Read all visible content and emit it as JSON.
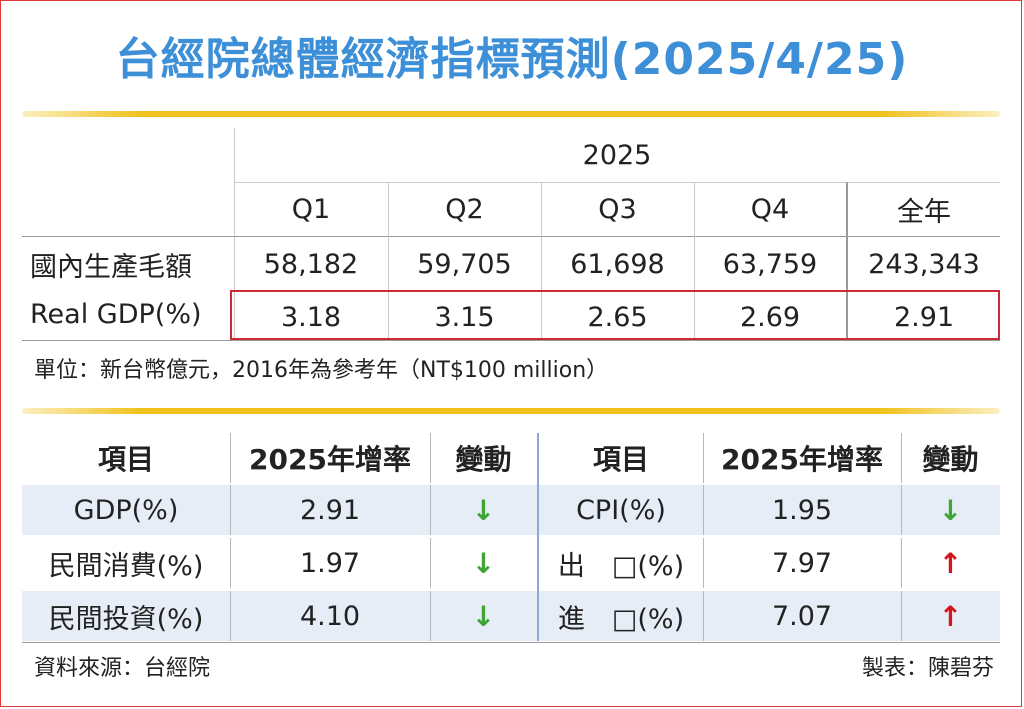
{
  "title": "台經院總體經濟指標預測(2025/4/25)",
  "top_table": {
    "year": "2025",
    "quarters": [
      "Q1",
      "Q2",
      "Q3",
      "Q4",
      "全年"
    ],
    "row_labels": [
      "國內生產毛額",
      "Real GDP(%)"
    ],
    "gdp_values": [
      "58,182",
      "59,705",
      "61,698",
      "63,759",
      "243,343"
    ],
    "real_gdp_values": [
      "3.18",
      "3.15",
      "2.65",
      "2.69",
      "2.91"
    ],
    "unit_note": "單位：新台幣億元，2016年為參考年（NT$100 million）"
  },
  "bottom_table": {
    "headers": [
      "項目",
      "2025年增率",
      "變動",
      "項目",
      "2025年增率",
      "變動"
    ],
    "rows": [
      {
        "left_item": "GDP(%)",
        "left_rate": "2.91",
        "left_change": "↓",
        "right_item": "CPI(%)",
        "right_rate": "1.95",
        "right_change": "↓"
      },
      {
        "left_item": "民間消費(%)",
        "left_rate": "1.97",
        "left_change": "↓",
        "right_item": "出　□(%)",
        "right_rate": "7.97",
        "right_change": "↑"
      },
      {
        "left_item": "民間投資(%)",
        "left_rate": "4.10",
        "left_change": "↓",
        "right_item": "進　□(%)",
        "right_rate": "7.07",
        "right_change": "↑"
      }
    ]
  },
  "source": "資料來源：台經院",
  "author": "製表：陳碧芬",
  "colors": {
    "title": "#3d8fd8",
    "rule": "#f1c21e",
    "row_fill": "#e6edf6",
    "highlight_border": "#cc2a35",
    "down_arrow": "#3fa535",
    "up_arrow": "#d4161c"
  }
}
